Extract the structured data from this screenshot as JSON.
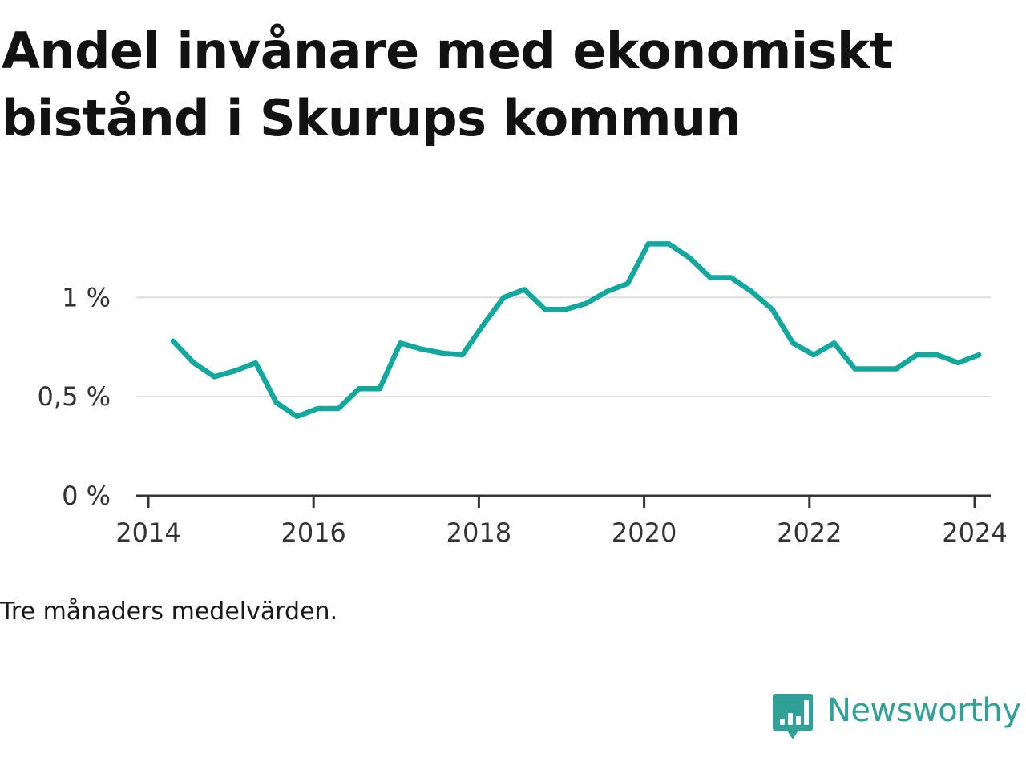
{
  "title_lines": [
    "Andel invånare med ekonomiskt",
    "bistånd i Skurups kommun"
  ],
  "note": "Tre månaders medelvärden.",
  "brand": {
    "name": "Newsworthy",
    "icon": "bar-chart-speech-bubble-icon",
    "color": "#2fa196"
  },
  "colors": {
    "line": "#13a89e",
    "grid": "#dddddd",
    "axis": "#333333",
    "text": "#121212"
  },
  "chart_data": {
    "type": "line",
    "title": "Andel invånare med ekonomiskt bistånd i Skurups kommun",
    "xlabel": "",
    "ylabel": "",
    "xlim": [
      2014,
      2024.5
    ],
    "ylim": [
      0,
      1.3
    ],
    "x_ticks": [
      {
        "value": 2014,
        "label": "2014"
      },
      {
        "value": 2016,
        "label": "2016"
      },
      {
        "value": 2018,
        "label": "2018"
      },
      {
        "value": 2020,
        "label": "2020"
      },
      {
        "value": 2022,
        "label": "2022"
      },
      {
        "value": 2024,
        "label": "2024"
      }
    ],
    "y_ticks": [
      {
        "value": 0,
        "label": "0 %"
      },
      {
        "value": 0.5,
        "label": "0,5 %"
      },
      {
        "value": 1,
        "label": "1 %"
      }
    ],
    "grid": true,
    "legend": "none",
    "series": [
      {
        "x": [
          2014.3,
          2014.55,
          2014.8,
          2015.05,
          2015.3,
          2015.55,
          2015.8,
          2016.05,
          2016.3,
          2016.55,
          2016.8,
          2017.05,
          2017.3,
          2017.55,
          2017.8,
          2018.05,
          2018.3,
          2018.55,
          2018.8,
          2019.05,
          2019.3,
          2019.55,
          2019.8,
          2020.05,
          2020.3,
          2020.55,
          2020.8,
          2021.05,
          2021.3,
          2021.55,
          2021.8,
          2022.05,
          2022.3,
          2022.55,
          2022.8,
          2023.05,
          2023.3,
          2023.55,
          2023.8,
          2024.05
        ],
        "values": [
          0.78,
          0.67,
          0.6,
          0.63,
          0.67,
          0.47,
          0.4,
          0.44,
          0.44,
          0.54,
          0.54,
          0.77,
          0.74,
          0.72,
          0.71,
          0.86,
          1.0,
          1.04,
          0.94,
          0.94,
          0.97,
          1.03,
          1.07,
          1.27,
          1.27,
          1.2,
          1.1,
          1.1,
          1.03,
          0.94,
          0.77,
          0.71,
          0.77,
          0.64,
          0.64,
          0.64,
          0.71,
          0.71,
          0.67,
          0.71
        ]
      }
    ]
  }
}
